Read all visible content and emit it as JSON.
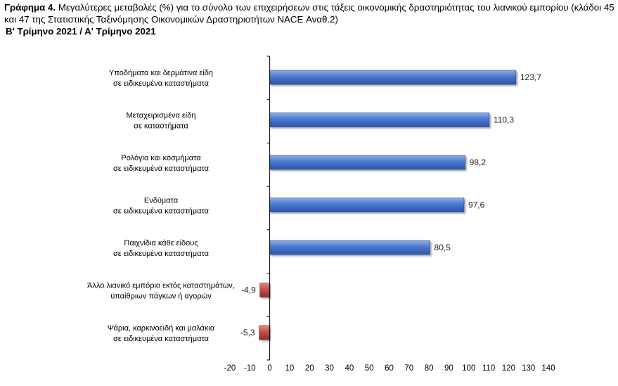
{
  "title": {
    "prefix": "Γράφημα 4.",
    "text": " Μεγαλύτερες μεταβολές (%) για το σύνολο των επιχειρήσεων στις τάξεις οικονομικής δραστηριότητας του λιανικού εμπορίου (κλάδοι 45 και 47 της Στατιστικής Ταξινόμησης Οικονομικών Δραστηριοτήτων NACE Αναθ.2)",
    "subtitle": "Β' Τρίμηνο 2021 / Α' Τρίμηνο 2021"
  },
  "chart_data": {
    "type": "bar",
    "orientation": "horizontal",
    "categories": [
      [
        "Υποδήματα και δερμάτινα είδη",
        "σε ειδικευμένα καταστήματα"
      ],
      [
        "Μεταχειρισμένα είδη",
        "σε καταστήματα"
      ],
      [
        "Ρολόγια και κοσμήματα",
        "σε ειδικευμένα καταστήματα"
      ],
      [
        "Ενδύματα",
        "σε ειδικευμένα καταστήματα"
      ],
      [
        "Παιχνίδια κάθε είδους",
        "σε ειδικευμένα καταστήματα"
      ],
      [
        "Άλλο λιανικό εμπόριο εκτός καταστημάτων,",
        "υπαίθριων πάγκων ή αγορών"
      ],
      [
        "Ψάρια, καρκινοειδή και μαλάκια",
        "σε ειδικευμένα καταστήματα"
      ]
    ],
    "values": [
      123.7,
      110.3,
      98.2,
      97.6,
      80.5,
      -4.9,
      -5.3
    ],
    "value_labels": [
      "123,7",
      "110,3",
      "98,2",
      "97,6",
      "80,5",
      "-4,9",
      "-5,3"
    ],
    "xlim": [
      -20,
      140
    ],
    "xticks": [
      -20,
      -10,
      0,
      10,
      20,
      30,
      40,
      50,
      60,
      70,
      80,
      90,
      100,
      110,
      120,
      130,
      140
    ],
    "grid": false,
    "colors": {
      "positive": "#4472C4",
      "negative": "#C0504D"
    }
  }
}
